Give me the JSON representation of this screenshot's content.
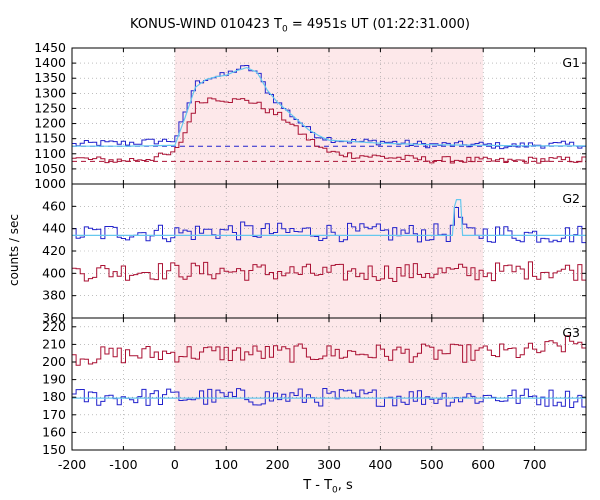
{
  "title": {
    "main": "KONUS-WIND 010423 T",
    "sub": "0",
    "rest": " = 4951s UT (01:22:31.000)"
  },
  "xlabel": {
    "main": "T - T",
    "sub": "0",
    "rest": ", s"
  },
  "ylabel": "counts / sec",
  "colors": {
    "blue": "#2222cc",
    "red": "#aa1133",
    "cyan": "#66c8ee",
    "shade": "#fde8ea",
    "frame": "#000000",
    "grid": "#999999"
  },
  "chart_data": {
    "type": "line",
    "x_ticks": [
      -200,
      -100,
      0,
      100,
      200,
      300,
      400,
      500,
      600,
      700
    ],
    "x_tick_labels": [
      "-200",
      "-100",
      "0",
      "100",
      "200",
      "300",
      "400",
      "500",
      "600",
      "700"
    ],
    "xlim": [
      -200,
      800
    ],
    "shaded_interval": [
      0,
      600
    ],
    "grid": true,
    "panels": [
      {
        "label": "G1",
        "ylim": [
          1000,
          1450
        ],
        "y_ticks": [
          1000,
          1050,
          1100,
          1150,
          1200,
          1250,
          1300,
          1350,
          1400,
          1450
        ],
        "y_tick_labels": [
          "1000",
          "1050",
          "1100",
          "1150",
          "1200",
          "1250",
          "1300",
          "1350",
          "1400",
          "1450"
        ],
        "dashed_levels": [
          {
            "series": "blue",
            "value": 1125
          },
          {
            "series": "red",
            "value": 1075
          }
        ],
        "series": [
          {
            "color": "blue",
            "points": [
              [
                -200,
                1130
              ],
              [
                -150,
                1135
              ],
              [
                -100,
                1135
              ],
              [
                -50,
                1140
              ],
              [
                0,
                1145
              ],
              [
                20,
                1230
              ],
              [
                40,
                1330
              ],
              [
                60,
                1350
              ],
              [
                80,
                1355
              ],
              [
                100,
                1360
              ],
              [
                120,
                1380
              ],
              [
                140,
                1385
              ],
              [
                160,
                1370
              ],
              [
                180,
                1310
              ],
              [
                200,
                1270
              ],
              [
                220,
                1240
              ],
              [
                240,
                1210
              ],
              [
                260,
                1180
              ],
              [
                280,
                1160
              ],
              [
                300,
                1150
              ],
              [
                350,
                1140
              ],
              [
                400,
                1140
              ],
              [
                450,
                1135
              ],
              [
                500,
                1130
              ],
              [
                550,
                1130
              ],
              [
                600,
                1130
              ],
              [
                650,
                1125
              ],
              [
                700,
                1130
              ],
              [
                750,
                1130
              ],
              [
                800,
                1130
              ]
            ]
          },
          {
            "color": "red",
            "points": [
              [
                -200,
                1085
              ],
              [
                -150,
                1080
              ],
              [
                -100,
                1078
              ],
              [
                -50,
                1085
              ],
              [
                0,
                1100
              ],
              [
                20,
                1170
              ],
              [
                40,
                1260
              ],
              [
                60,
                1280
              ],
              [
                80,
                1285
              ],
              [
                100,
                1280
              ],
              [
                120,
                1275
              ],
              [
                140,
                1280
              ],
              [
                160,
                1265
              ],
              [
                180,
                1245
              ],
              [
                200,
                1230
              ],
              [
                220,
                1210
              ],
              [
                240,
                1175
              ],
              [
                260,
                1150
              ],
              [
                280,
                1125
              ],
              [
                300,
                1105
              ],
              [
                350,
                1095
              ],
              [
                400,
                1090
              ],
              [
                450,
                1085
              ],
              [
                500,
                1080
              ],
              [
                550,
                1080
              ],
              [
                600,
                1078
              ],
              [
                650,
                1075
              ],
              [
                700,
                1080
              ],
              [
                750,
                1080
              ],
              [
                800,
                1080
              ]
            ]
          },
          {
            "color": "cyan",
            "points": [
              [
                -200,
                1125
              ],
              [
                -100,
                1125
              ],
              [
                0,
                1128
              ],
              [
                20,
                1220
              ],
              [
                40,
                1320
              ],
              [
                60,
                1345
              ],
              [
                80,
                1355
              ],
              [
                100,
                1360
              ],
              [
                120,
                1375
              ],
              [
                140,
                1385
              ],
              [
                160,
                1370
              ],
              [
                180,
                1310
              ],
              [
                200,
                1270
              ],
              [
                220,
                1240
              ],
              [
                240,
                1210
              ],
              [
                260,
                1180
              ],
              [
                280,
                1160
              ],
              [
                300,
                1145
              ],
              [
                400,
                1135
              ],
              [
                500,
                1130
              ],
              [
                600,
                1128
              ],
              [
                700,
                1126
              ],
              [
                800,
                1126
              ]
            ]
          }
        ]
      },
      {
        "label": "G2",
        "ylim": [
          360,
          480
        ],
        "y_ticks": [
          360,
          380,
          400,
          420,
          440,
          460
        ],
        "y_tick_labels": [
          "360",
          "380",
          "400",
          "420",
          "440",
          "460"
        ],
        "series": [
          {
            "color": "blue",
            "points": [
              [
                -200,
                435
              ],
              [
                -100,
                437
              ],
              [
                0,
                436
              ],
              [
                100,
                438
              ],
              [
                200,
                437
              ],
              [
                300,
                437
              ],
              [
                400,
                436
              ],
              [
                500,
                436
              ],
              [
                540,
                436
              ],
              [
                550,
                466
              ],
              [
                560,
                436
              ],
              [
                600,
                436
              ],
              [
                700,
                435
              ],
              [
                800,
                435
              ]
            ]
          },
          {
            "color": "red",
            "points": [
              [
                -200,
                401
              ],
              [
                -100,
                402
              ],
              [
                0,
                402
              ],
              [
                100,
                402
              ],
              [
                200,
                401
              ],
              [
                300,
                400
              ],
              [
                400,
                401
              ],
              [
                500,
                401
              ],
              [
                600,
                401
              ],
              [
                700,
                403
              ],
              [
                800,
                402
              ]
            ]
          },
          {
            "color": "cyan",
            "points": [
              [
                -200,
                434
              ],
              [
                540,
                434
              ],
              [
                545,
                466
              ],
              [
                556,
                466
              ],
              [
                560,
                434
              ],
              [
                800,
                434
              ]
            ]
          }
        ]
      },
      {
        "label": "G3",
        "ylim": [
          150,
          225
        ],
        "y_ticks": [
          150,
          160,
          170,
          180,
          190,
          200,
          210,
          220
        ],
        "y_tick_labels": [
          "150",
          "160",
          "170",
          "180",
          "190",
          "200",
          "210",
          "220"
        ],
        "series": [
          {
            "color": "red",
            "points": [
              [
                -200,
                203
              ],
              [
                -100,
                204
              ],
              [
                0,
                205
              ],
              [
                100,
                205
              ],
              [
                200,
                205
              ],
              [
                300,
                205
              ],
              [
                400,
                205
              ],
              [
                500,
                205
              ],
              [
                600,
                205
              ],
              [
                700,
                206
              ],
              [
                800,
                212
              ]
            ]
          },
          {
            "color": "blue",
            "points": [
              [
                -200,
                180
              ],
              [
                -100,
                180
              ],
              [
                0,
                180
              ],
              [
                100,
                180
              ],
              [
                200,
                180
              ],
              [
                300,
                180
              ],
              [
                400,
                180
              ],
              [
                500,
                180
              ],
              [
                600,
                180
              ],
              [
                700,
                180
              ],
              [
                800,
                179
              ]
            ]
          },
          {
            "color": "cyan",
            "points": [
              [
                -200,
                179.5
              ],
              [
                800,
                179.5
              ]
            ]
          }
        ]
      }
    ]
  }
}
